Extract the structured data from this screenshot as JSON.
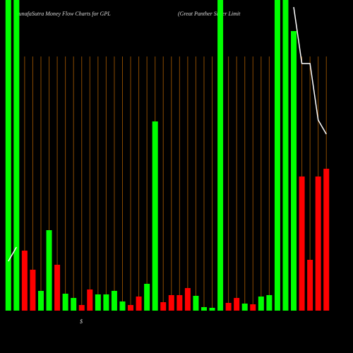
{
  "chart_data": {
    "type": "bar",
    "title": "MunafaSutra  Money Flow  Charts for GPL",
    "subtitle": "(Great Panther Silver Limit",
    "annotation": "$",
    "categories": [
      null,
      null,
      null,
      null,
      null,
      null,
      null,
      null,
      null,
      null,
      null,
      null,
      null,
      null,
      null,
      null,
      null,
      null,
      null,
      null,
      null,
      null,
      null,
      null,
      null,
      null,
      null,
      null,
      null,
      null,
      null,
      null,
      null,
      null,
      null,
      null,
      null,
      null,
      null,
      null
    ],
    "values": [
      440,
      440,
      85,
      58,
      28,
      114,
      65,
      24,
      18,
      8,
      30,
      23,
      23,
      28,
      13,
      8,
      20,
      38,
      268,
      12,
      22,
      22,
      32,
      21,
      5,
      4,
      440,
      11,
      18,
      10,
      9,
      20,
      22,
      440,
      440,
      396,
      190,
      72,
      190,
      201
    ],
    "colors": [
      "#00ff00",
      "#00ff00",
      "#ff0000",
      "#ff0000",
      "#00ff00",
      "#00ff00",
      "#ff0000",
      "#00ff00",
      "#00ff00",
      "#ff0000",
      "#ff0000",
      "#00ff00",
      "#00ff00",
      "#00ff00",
      "#00ff00",
      "#ff0000",
      "#ff0000",
      "#00ff00",
      "#00ff00",
      "#ff0000",
      "#ff0000",
      "#ff0000",
      "#ff0000",
      "#00ff00",
      "#00ff00",
      "#00ff00",
      "#00ff00",
      "#ff0000",
      "#ff0000",
      "#00ff00",
      "#ff0000",
      "#00ff00",
      "#00ff00",
      "#00ff00",
      "#00ff00",
      "#00ff00",
      "#ff0000",
      "#ff0000",
      "#ff0000",
      "#ff0000"
    ],
    "line": {
      "color": "#ffffff",
      "values": [
        70,
        90,
        null,
        null,
        null,
        null,
        null,
        null,
        null,
        null,
        null,
        null,
        null,
        null,
        null,
        null,
        null,
        null,
        null,
        null,
        null,
        null,
        null,
        null,
        null,
        null,
        null,
        null,
        null,
        null,
        null,
        null,
        null,
        null,
        null,
        430,
        350,
        350,
        270,
        250
      ]
    },
    "ylim": [
      0,
      440
    ],
    "grid": true,
    "grid_color": "#8a4a00"
  }
}
